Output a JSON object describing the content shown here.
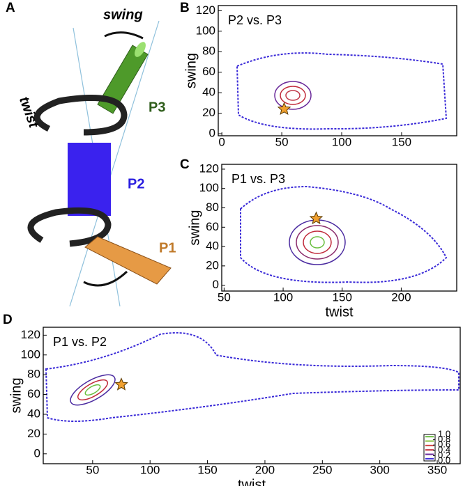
{
  "panel_labels": [
    "A",
    "B",
    "C",
    "D"
  ],
  "diagram": {
    "swing": "swing",
    "twist": "twist",
    "p3": "P3",
    "p2": "P2",
    "p1": "P1"
  },
  "chart_data": [
    {
      "type": "contour",
      "title": "P2 vs. P3",
      "y_label": "swing",
      "xlim": [
        -3,
        196
      ],
      "ylim": [
        -2,
        125
      ],
      "xticks": [
        0,
        50,
        100,
        150
      ],
      "yticks": [
        0,
        20,
        40,
        60,
        80,
        100,
        120
      ],
      "star": {
        "x": 52,
        "y": 24,
        "color": "#f0a030"
      }
    },
    {
      "type": "contour",
      "title": "P1 vs. P3",
      "x_label": "twist",
      "y_label": "swing",
      "xlim": [
        48,
        247
      ],
      "ylim": [
        -6,
        125
      ],
      "xticks": [
        50,
        100,
        150,
        200
      ],
      "yticks": [
        0,
        20,
        40,
        60,
        80,
        100,
        120
      ],
      "star": {
        "x": 128,
        "y": 69,
        "color": "#f0a030"
      }
    },
    {
      "type": "contour",
      "title": "P1 vs. P2",
      "x_label": "twist",
      "y_label": "swing",
      "xlim": [
        7,
        370
      ],
      "ylim": [
        -10,
        128
      ],
      "xticks": [
        50,
        100,
        150,
        200,
        250,
        300,
        350
      ],
      "yticks": [
        0,
        20,
        40,
        60,
        80,
        100,
        120
      ],
      "star": {
        "x": 75,
        "y": 70,
        "color": "#f0a030"
      },
      "colorbar": {
        "lim": [
          0,
          1
        ],
        "colors": [
          "#3a2ad8",
          "#6a2a9a",
          "#c02a3a",
          "#d04040",
          "#8ac040",
          "#6ac040"
        ],
        "ticks": [
          {
            "value": 0,
            "label": "0.0"
          },
          {
            "value": 0.2,
            "label": "0.2"
          },
          {
            "value": 0.4,
            "label": "0.4"
          },
          {
            "value": 0.6,
            "label": "0.6"
          },
          {
            "value": 0.8,
            "label": "0.8"
          },
          {
            "value": 1,
            "label": "1.0"
          }
        ]
      }
    }
  ]
}
